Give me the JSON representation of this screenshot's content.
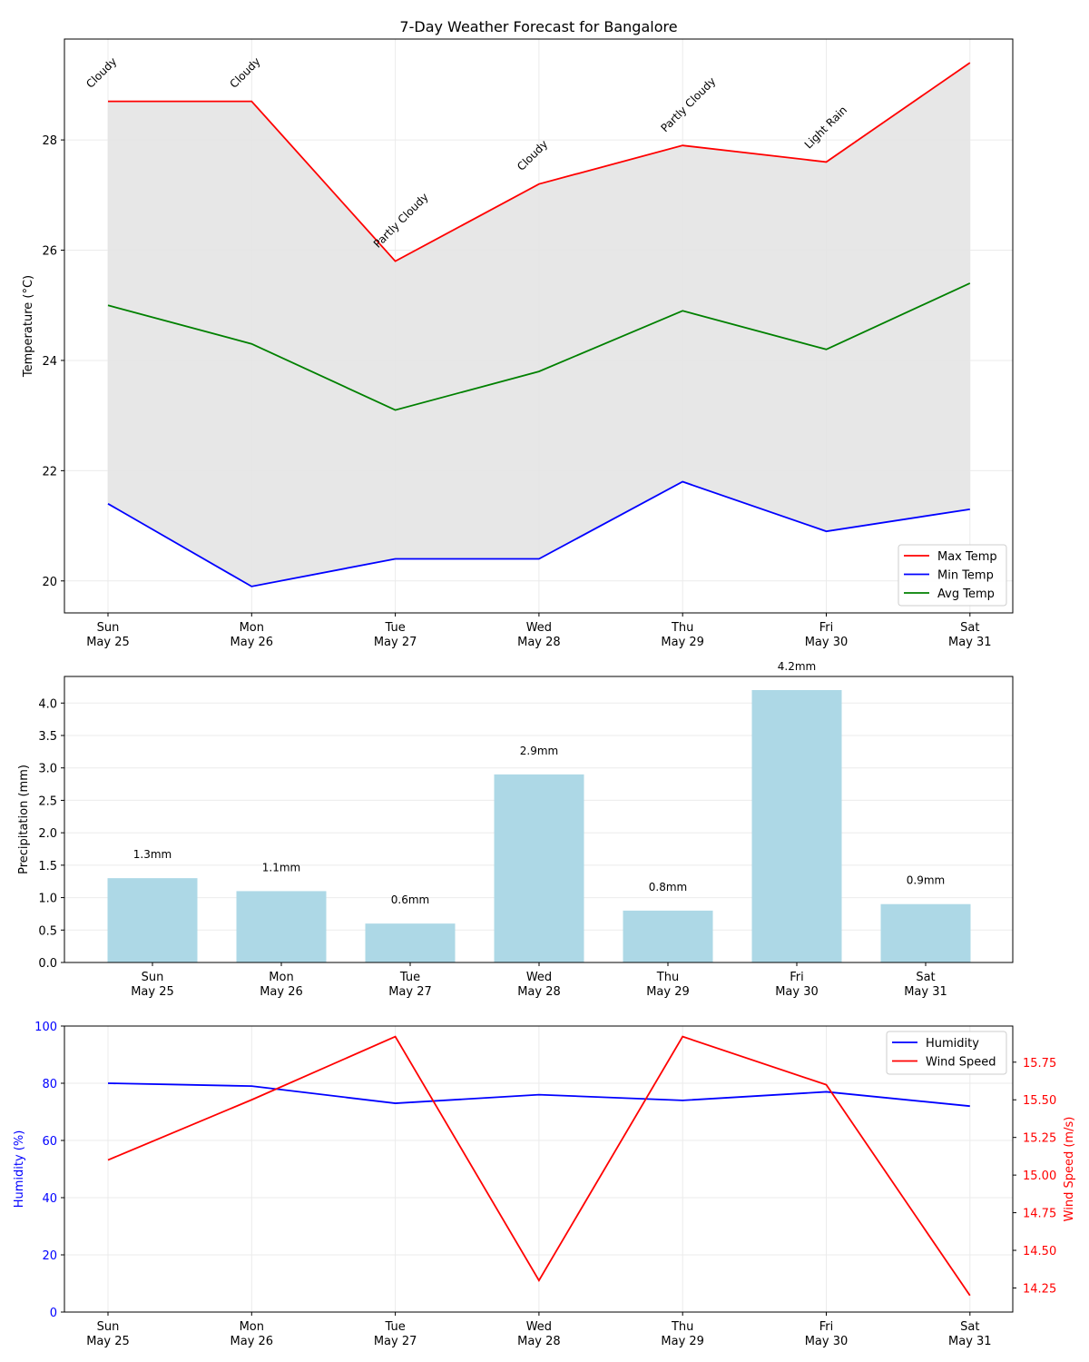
{
  "chart_data": [
    {
      "type": "line",
      "title": "7-Day Weather Forecast for Bangalore",
      "ylabel": "Temperature (°C)",
      "xlabel": "",
      "ylim": [
        19.42,
        29.83
      ],
      "yticks": [
        20,
        22,
        24,
        26,
        28
      ],
      "grid": true,
      "legend_position": "lower-right",
      "categories": [
        "Sun\nMay 25",
        "Mon\nMay 26",
        "Tue\nMay 27",
        "Wed\nMay 28",
        "Thu\nMay 29",
        "Fri\nMay 30",
        "Sat\nMay 31"
      ],
      "series": [
        {
          "name": "Max Temp",
          "color": "#ff0000",
          "values": [
            28.7,
            28.7,
            25.8,
            27.2,
            27.9,
            27.6,
            29.4
          ]
        },
        {
          "name": "Min Temp",
          "color": "#0000ff",
          "values": [
            21.4,
            19.9,
            20.4,
            20.4,
            21.8,
            20.9,
            21.3
          ]
        },
        {
          "name": "Avg Temp",
          "color": "#008000",
          "values": [
            25.0,
            24.3,
            23.1,
            23.8,
            24.9,
            24.2,
            25.4
          ]
        }
      ],
      "fill_between": [
        "Min Temp",
        "Max Temp"
      ],
      "fill_color": "#e4e4e4",
      "annotations": [
        "Cloudy",
        "Cloudy",
        "Partly Cloudy",
        "Cloudy",
        "Partly Cloudy",
        "Light Rain",
        ""
      ]
    },
    {
      "type": "bar",
      "ylabel": "Precipitation (mm)",
      "xlabel": "",
      "ylim": [
        0,
        4.41
      ],
      "yticks": [
        0.0,
        0.5,
        1.0,
        1.5,
        2.0,
        2.5,
        3.0,
        3.5,
        4.0
      ],
      "grid": true,
      "color": "#add8e6",
      "categories": [
        "Sun\nMay 25",
        "Mon\nMay 26",
        "Tue\nMay 27",
        "Wed\nMay 28",
        "Thu\nMay 29",
        "Fri\nMay 30",
        "Sat\nMay 31"
      ],
      "values": [
        1.3,
        1.1,
        0.6,
        2.9,
        0.8,
        4.2,
        0.9
      ],
      "data_labels": [
        "1.3mm",
        "1.1mm",
        "0.6mm",
        "2.9mm",
        "0.8mm",
        "4.2mm",
        "0.9mm"
      ]
    },
    {
      "type": "line",
      "xlabel": "",
      "ylabel": "Humidity (%)",
      "ylabel_right": "Wind Speed (m/s)",
      "ylim": [
        0,
        100
      ],
      "ylim_right": [
        14.09,
        15.99
      ],
      "yticks": [
        0,
        20,
        40,
        60,
        80,
        100
      ],
      "yticks_right": [
        14.25,
        14.5,
        14.75,
        15.0,
        15.25,
        15.5,
        15.75
      ],
      "grid": true,
      "legend_position": "top-right",
      "categories": [
        "Sun\nMay 25",
        "Mon\nMay 26",
        "Tue\nMay 27",
        "Wed\nMay 28",
        "Thu\nMay 29",
        "Fri\nMay 30",
        "Sat\nMay 31"
      ],
      "series": [
        {
          "name": "Humidity",
          "color": "#0000ff",
          "axis": "left",
          "values": [
            80,
            79,
            73,
            76,
            74,
            77,
            72
          ]
        },
        {
          "name": "Wind Speed",
          "color": "#ff0000",
          "axis": "right",
          "values": [
            15.1,
            15.5,
            15.92,
            14.3,
            15.92,
            15.6,
            14.2
          ]
        }
      ]
    }
  ]
}
